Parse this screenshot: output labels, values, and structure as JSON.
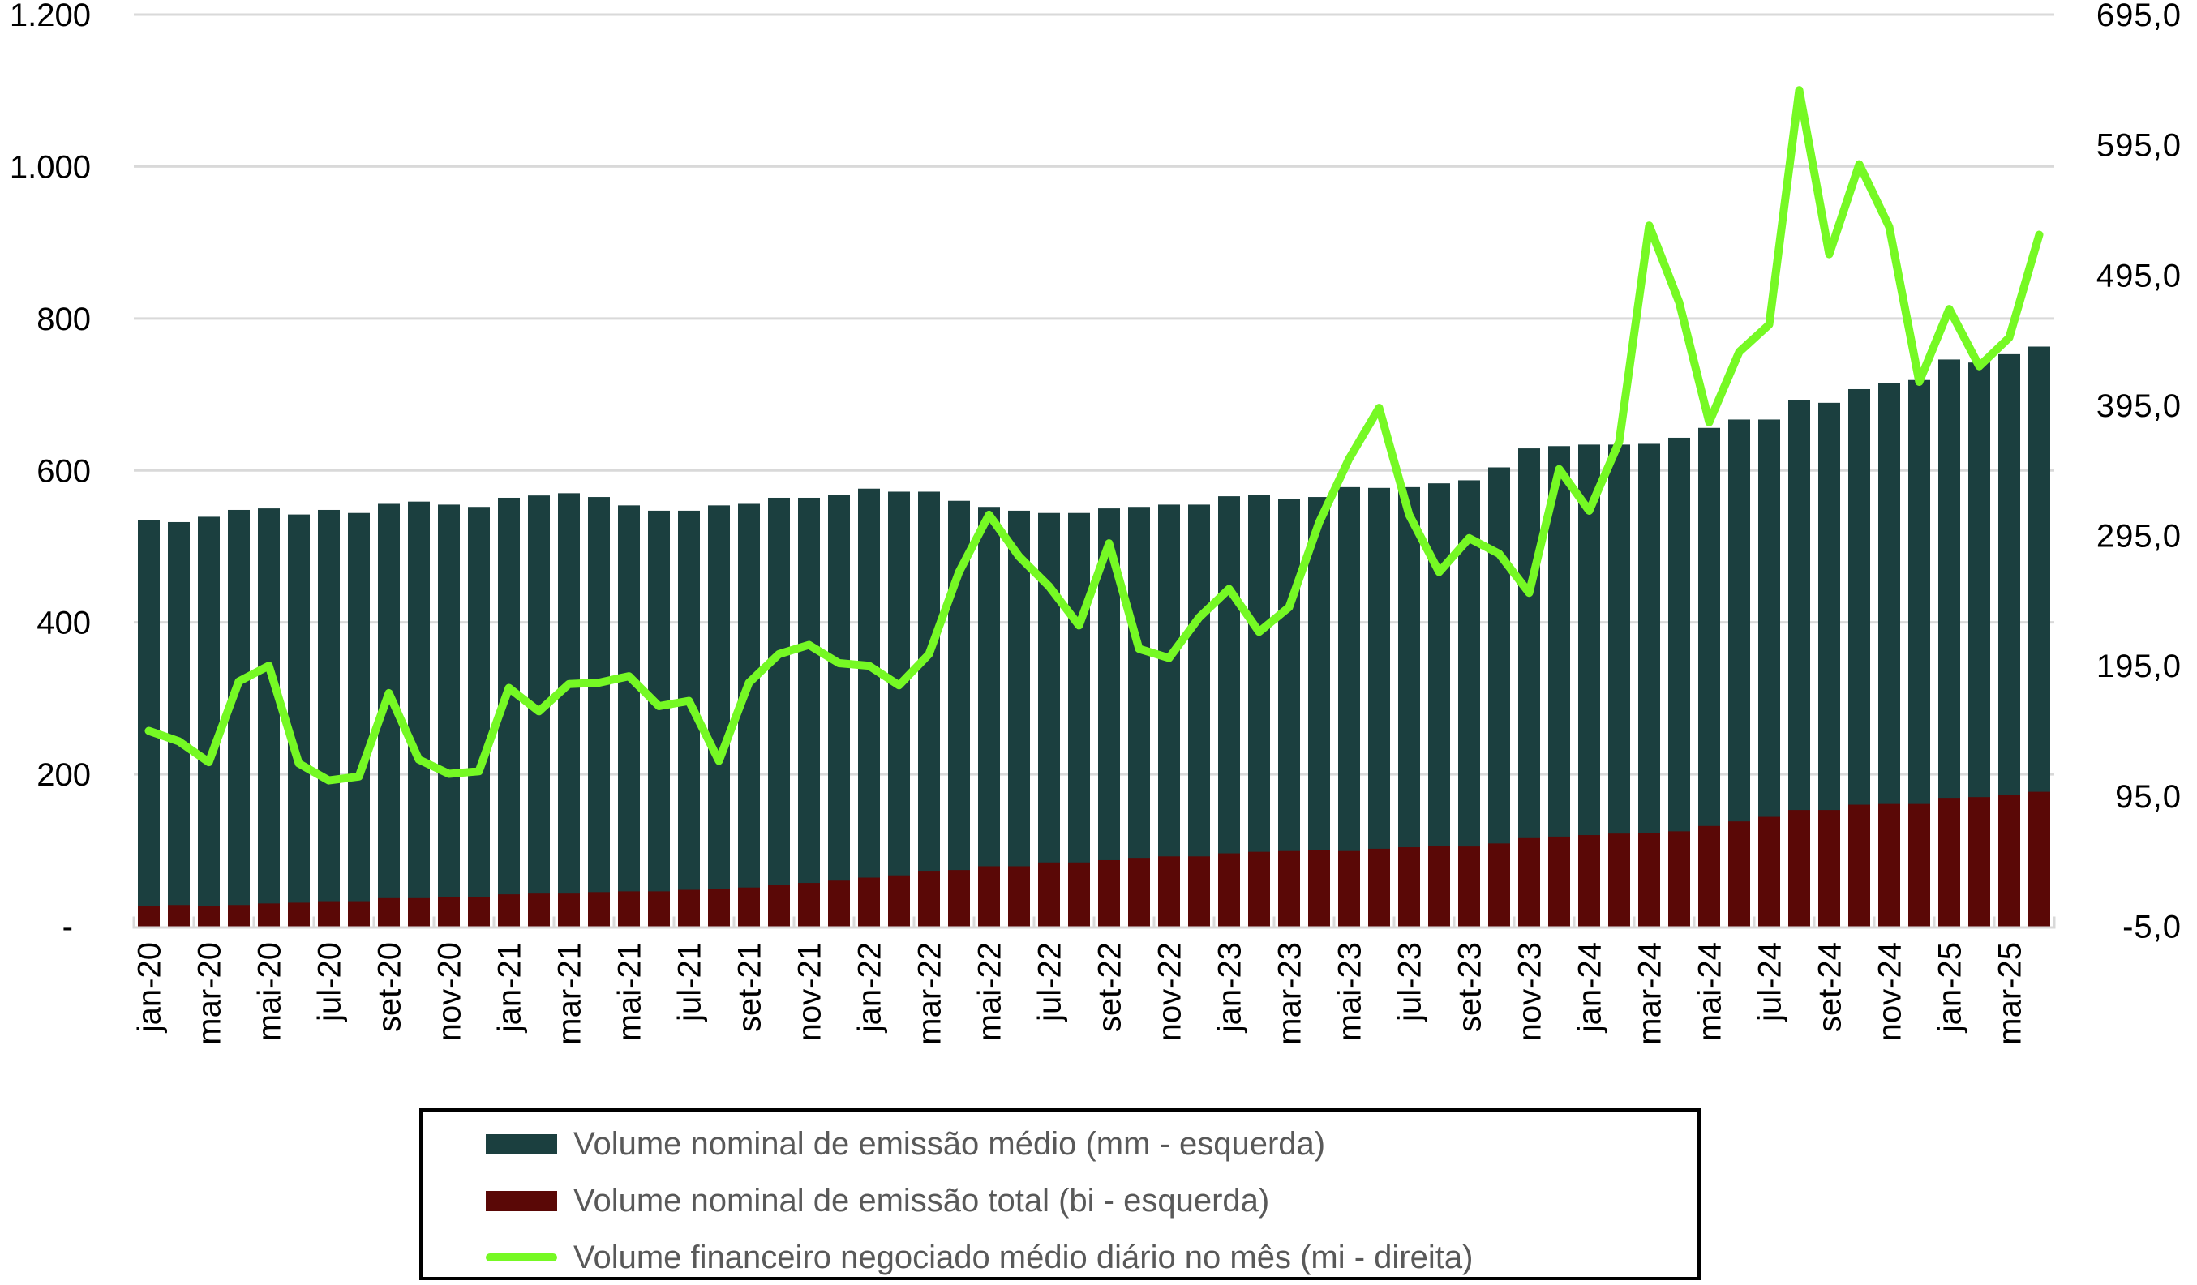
{
  "chart_data": {
    "type": "bar",
    "title": "",
    "xlabel": "",
    "ylabel": "",
    "categories": [
      "jan-20",
      "fev-20",
      "mar-20",
      "abr-20",
      "mai-20",
      "jun-20",
      "jul-20",
      "ago-20",
      "set-20",
      "out-20",
      "nov-20",
      "dez-20",
      "jan-21",
      "fev-21",
      "mar-21",
      "abr-21",
      "mai-21",
      "jun-21",
      "jul-21",
      "ago-21",
      "set-21",
      "out-21",
      "nov-21",
      "dez-21",
      "jan-22",
      "fev-22",
      "mar-22",
      "abr-22",
      "mai-22",
      "jun-22",
      "jul-22",
      "ago-22",
      "set-22",
      "out-22",
      "nov-22",
      "dez-22",
      "jan-23",
      "fev-23",
      "mar-23",
      "abr-23",
      "mai-23",
      "jun-23",
      "jul-23",
      "ago-23",
      "set-23",
      "out-23",
      "nov-23",
      "dez-23",
      "jan-24",
      "fev-24",
      "mar-24",
      "abr-24",
      "mai-24",
      "jun-24",
      "jul-24",
      "ago-24",
      "set-24",
      "out-24",
      "nov-24",
      "dez-24",
      "jan-25",
      "fev-25",
      "mar-25",
      "abr-25"
    ],
    "x_tick_labels": [
      "jan-20",
      "mar-20",
      "mai-20",
      "jul-20",
      "set-20",
      "nov-20",
      "jan-21",
      "mar-21",
      "mai-21",
      "jul-21",
      "set-21",
      "nov-21",
      "jan-22",
      "mar-22",
      "mai-22",
      "jul-22",
      "set-22",
      "nov-22",
      "jan-23",
      "mar-23",
      "mai-23",
      "jul-23",
      "set-23",
      "nov-23",
      "jan-24",
      "mar-24",
      "mai-24",
      "jul-24",
      "set-24",
      "nov-24",
      "jan-25",
      "mar-25"
    ],
    "y_left": {
      "ylim": [
        0,
        1200
      ],
      "tick_labels": [
        "-",
        "200",
        "400",
        "600",
        "800",
        "1.000",
        "1.200"
      ],
      "ticks": [
        0,
        200,
        400,
        600,
        800,
        1000,
        1200
      ]
    },
    "y_right": {
      "ylim": [
        -5,
        695
      ],
      "tick_labels": [
        "-5,0",
        "95,0",
        "195,0",
        "295,0",
        "395,0",
        "495,0",
        "595,0",
        "695,0"
      ],
      "ticks": [
        -5,
        95,
        195,
        295,
        395,
        495,
        595,
        695
      ]
    },
    "grid": true,
    "legend_position": "bottom",
    "series": [
      {
        "name": "Volume nominal de emissão médio (mm - esquerda)",
        "type": "bar",
        "axis": "left",
        "color": "#1b3f3f",
        "values": [
          535,
          532,
          539,
          548,
          550,
          542,
          548,
          544,
          556,
          559,
          555,
          552,
          564,
          567,
          570,
          565,
          554,
          547,
          547,
          554,
          556,
          564,
          564,
          568,
          576,
          572,
          572,
          560,
          552,
          547,
          544,
          544,
          550,
          552,
          555,
          555,
          566,
          568,
          562,
          565,
          578,
          577,
          578,
          583,
          587,
          604,
          629,
          632,
          634,
          634,
          635,
          643,
          656,
          667,
          667,
          693,
          689,
          707,
          715,
          719,
          746,
          742,
          753,
          763
        ]
      },
      {
        "name": "Volume nominal de emissão total (bi - esquerda)",
        "type": "bar",
        "axis": "left",
        "color": "#5a0806",
        "values": [
          27,
          28,
          27,
          28,
          30,
          31,
          33,
          33,
          37,
          37,
          38,
          38,
          42,
          43,
          43,
          45,
          46,
          46,
          48,
          49,
          51,
          54,
          57,
          60,
          64,
          67,
          73,
          74,
          79,
          79,
          84,
          84,
          87,
          90,
          92,
          92,
          96,
          98,
          99,
          100,
          99,
          102,
          104,
          106,
          105,
          109,
          116,
          118,
          120,
          122,
          123,
          125,
          132,
          138,
          144,
          153,
          153,
          160,
          161,
          161,
          169,
          170,
          173,
          177
        ]
      },
      {
        "name": "Volume financeiro negociado médio diário no mês (mi - direita)",
        "type": "line",
        "axis": "right",
        "color": "#76f924",
        "values": [
          145,
          137,
          121,
          183,
          195,
          120,
          107,
          110,
          174,
          123,
          112,
          114,
          178,
          160,
          181,
          182,
          187,
          164,
          168,
          122,
          182,
          204,
          211,
          197,
          195,
          180,
          204,
          267,
          311,
          279,
          256,
          226,
          289,
          208,
          201,
          232,
          254,
          221,
          240,
          305,
          354,
          393,
          311,
          267,
          293,
          281,
          251,
          346,
          314,
          367,
          533,
          474,
          382,
          436,
          457,
          637,
          511,
          580,
          532,
          413,
          469,
          425,
          447,
          526
        ]
      }
    ]
  },
  "colors": {
    "grid": "#d9d9d9",
    "axis": "#d9d9d9",
    "legend_text": "#595959"
  }
}
